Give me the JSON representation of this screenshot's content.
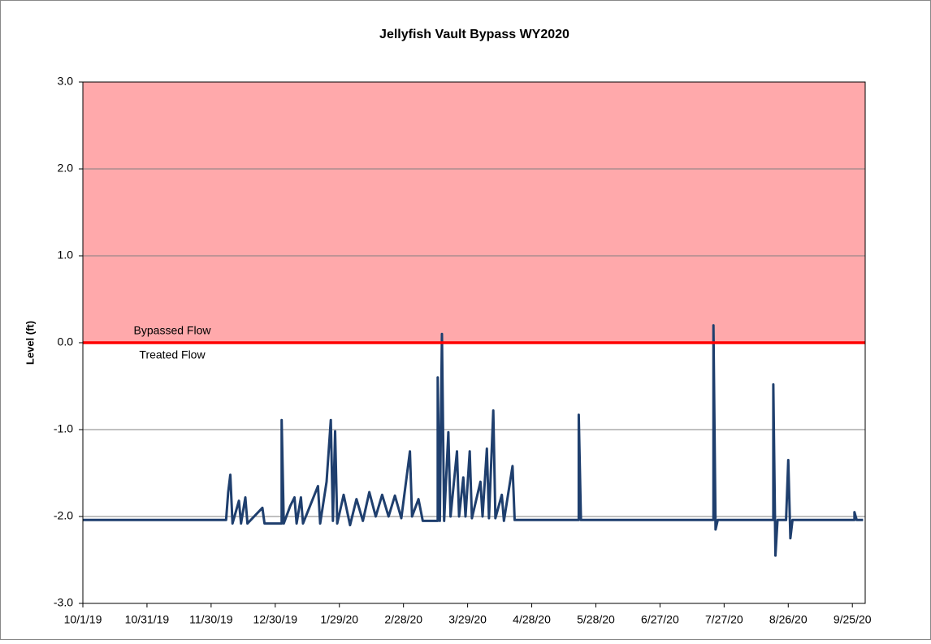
{
  "chart_data": {
    "type": "line",
    "title": "Jellyfish Vault  Bypass WY2020",
    "y_label": "Level (ft)",
    "annotations": [
      "Bypassed Flow",
      "Treated Flow"
    ],
    "threshold": 0,
    "threshold_color": "#ff0000",
    "above_threshold_fill": "#ffa9ab",
    "xlim": [
      "10/1/19",
      "10/1/20"
    ],
    "xticks": [
      "10/1/19",
      "10/31/19",
      "11/30/19",
      "12/30/19",
      "1/29/20",
      "2/28/20",
      "3/29/20",
      "4/28/20",
      "5/28/20",
      "6/27/20",
      "7/27/20",
      "8/26/20",
      "9/25/20"
    ],
    "ylim": [
      -3,
      3
    ],
    "yticks": [
      {
        "value": -3,
        "label": "-3.0"
      },
      {
        "value": -2,
        "label": "-2.0"
      },
      {
        "value": -1,
        "label": "-1.0"
      },
      {
        "value": 0,
        "label": "0.0"
      },
      {
        "value": 1,
        "label": "1.0"
      },
      {
        "value": 2,
        "label": "2.0"
      },
      {
        "value": 3,
        "label": "3.0"
      }
    ],
    "grid": true,
    "series": [
      {
        "name": "Level",
        "color": "#1f3f6e",
        "x": [
          "10/1/19",
          "12/7/19",
          "12/8/19",
          "12/9/19",
          "12/10/19",
          "12/13/19",
          "12/14/19",
          "12/16/19",
          "12/17/19",
          "12/24/19",
          "12/25/19",
          "1/2/20",
          "1/2/20",
          "1/3/20",
          "1/6/20",
          "1/8/20",
          "1/9/20",
          "1/11/20",
          "1/12/20",
          "1/19/20",
          "1/20/20",
          "1/23/20",
          "1/25/20",
          "1/26/20",
          "1/27/20",
          "1/28/20",
          "1/31/20",
          "2/3/20",
          "2/6/20",
          "2/9/20",
          "2/12/20",
          "2/15/20",
          "2/18/20",
          "2/21/20",
          "2/24/20",
          "2/27/20",
          "3/2/20",
          "3/3/20",
          "3/6/20",
          "3/8/20",
          "3/15/20",
          "3/15/20",
          "3/16/20",
          "3/17/20",
          "3/18/20",
          "3/20/20",
          "3/21/20",
          "3/24/20",
          "3/25/20",
          "3/27/20",
          "3/28/20",
          "3/30/20",
          "3/31/20",
          "4/4/20",
          "4/5/20",
          "4/7/20",
          "4/8/20",
          "4/10/20",
          "4/11/20",
          "4/14/20",
          "4/15/20",
          "4/19/20",
          "4/20/20",
          "5/20/20",
          "5/20/20",
          "5/21/20",
          "7/22/20",
          "7/22/20",
          "7/23/20",
          "7/24/20",
          "8/19/20",
          "8/19/20",
          "8/20/20",
          "8/21/20",
          "8/25/20",
          "8/26/20",
          "8/27/20",
          "8/28/20",
          "9/26/20",
          "9/26/20",
          "9/27/20",
          "9/30/20"
        ],
        "values": [
          -2.04,
          -2.04,
          -1.72,
          -1.52,
          -2.08,
          -1.82,
          -2.08,
          -1.78,
          -2.08,
          -1.9,
          -2.08,
          -2.08,
          -0.89,
          -2.08,
          -1.88,
          -1.78,
          -2.08,
          -1.78,
          -2.08,
          -1.65,
          -2.08,
          -1.6,
          -0.89,
          -2.05,
          -1.02,
          -2.08,
          -1.75,
          -2.1,
          -1.8,
          -2.05,
          -1.72,
          -2.0,
          -1.75,
          -2.0,
          -1.76,
          -2.02,
          -1.25,
          -2.0,
          -1.8,
          -2.05,
          -2.05,
          -0.4,
          -2.05,
          0.1,
          -2.05,
          -1.03,
          -2.0,
          -1.25,
          -2.0,
          -1.55,
          -2.0,
          -1.25,
          -2.02,
          -1.6,
          -2.0,
          -1.22,
          -2.02,
          -0.78,
          -2.02,
          -1.75,
          -2.05,
          -1.42,
          -2.04,
          -2.04,
          -0.83,
          -2.04,
          -2.04,
          0.2,
          -2.15,
          -2.04,
          -2.04,
          -0.48,
          -2.45,
          -2.04,
          -2.04,
          -1.35,
          -2.25,
          -2.04,
          -2.04,
          -1.95,
          -2.04,
          -2.04
        ]
      }
    ]
  }
}
